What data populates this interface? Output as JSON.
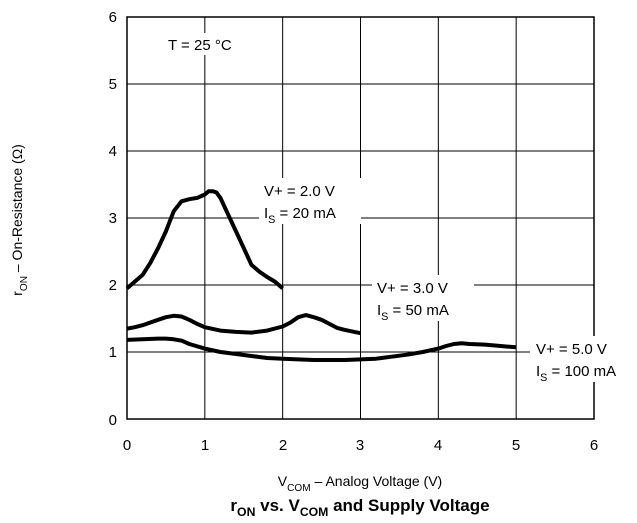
{
  "chart_data": {
    "type": "line",
    "title_main": "r",
    "title_sub1": "ON",
    "title_mid": " vs. V",
    "title_sub2": "COM",
    "title_end": " and Supply Voltage",
    "xlabel_main": "V",
    "xlabel_sub": "COM",
    "xlabel_rest": "  – Analog Voltage (V)",
    "ylabel_main": "r",
    "ylabel_sub": "ON",
    "ylabel_rest": "  – On-Resistance (Ω)",
    "xlim": [
      0,
      6
    ],
    "ylim": [
      0,
      6
    ],
    "x_ticks": [
      "0",
      "1",
      "2",
      "3",
      "4",
      "5",
      "6"
    ],
    "y_ticks": [
      "0",
      "1",
      "2",
      "3",
      "4",
      "5",
      "6"
    ],
    "grid": true,
    "temperature_note": "T = 25 °C",
    "series": [
      {
        "label_line1": "V+ = 2.0 V",
        "label_line2_main": "I",
        "label_line2_sub": "S",
        "label_line2_rest": " = 20 mA",
        "x": [
          0,
          0.1,
          0.2,
          0.3,
          0.4,
          0.5,
          0.6,
          0.7,
          0.8,
          0.9,
          1.0,
          1.05,
          1.1,
          1.15,
          1.2,
          1.3,
          1.4,
          1.5,
          1.6,
          1.7,
          1.8,
          1.9,
          2.0
        ],
        "y": [
          1.95,
          2.05,
          2.15,
          2.33,
          2.55,
          2.8,
          3.1,
          3.25,
          3.28,
          3.3,
          3.35,
          3.4,
          3.4,
          3.38,
          3.3,
          3.05,
          2.8,
          2.55,
          2.3,
          2.2,
          2.12,
          2.05,
          1.95
        ]
      },
      {
        "label_line1": "V+ = 3.0 V",
        "label_line2_main": "I",
        "label_line2_sub": "S",
        "label_line2_rest": " = 50 mA",
        "x": [
          0,
          0.1,
          0.2,
          0.3,
          0.4,
          0.5,
          0.6,
          0.7,
          0.8,
          0.9,
          1.0,
          1.2,
          1.4,
          1.6,
          1.8,
          2.0,
          2.1,
          2.2,
          2.3,
          2.4,
          2.5,
          2.6,
          2.7,
          2.8,
          3.0
        ],
        "y": [
          1.35,
          1.37,
          1.4,
          1.44,
          1.48,
          1.52,
          1.54,
          1.53,
          1.48,
          1.42,
          1.37,
          1.32,
          1.3,
          1.29,
          1.32,
          1.38,
          1.44,
          1.52,
          1.55,
          1.52,
          1.48,
          1.42,
          1.36,
          1.33,
          1.28
        ]
      },
      {
        "label_line1": "V+ = 5.0 V",
        "label_line2_main": "I",
        "label_line2_sub": "S",
        "label_line2_rest": " = 100 mA",
        "x": [
          0,
          0.2,
          0.4,
          0.5,
          0.6,
          0.7,
          0.8,
          1.0,
          1.2,
          1.4,
          1.6,
          1.8,
          2.0,
          2.2,
          2.4,
          2.6,
          2.8,
          3.0,
          3.2,
          3.4,
          3.6,
          3.8,
          4.0,
          4.1,
          4.2,
          4.3,
          4.4,
          4.6,
          4.8,
          5.0
        ],
        "y": [
          1.18,
          1.19,
          1.2,
          1.2,
          1.19,
          1.17,
          1.12,
          1.05,
          1.0,
          0.97,
          0.94,
          0.91,
          0.9,
          0.89,
          0.88,
          0.88,
          0.88,
          0.89,
          0.9,
          0.93,
          0.96,
          1.0,
          1.05,
          1.09,
          1.12,
          1.13,
          1.12,
          1.11,
          1.09,
          1.07
        ]
      }
    ]
  }
}
